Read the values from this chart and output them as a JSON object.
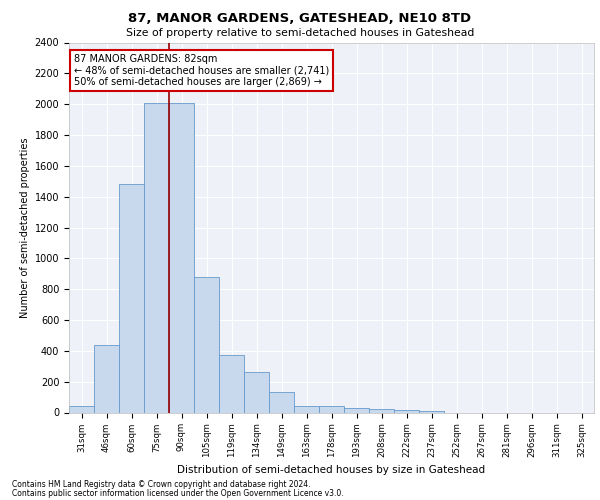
{
  "title1": "87, MANOR GARDENS, GATESHEAD, NE10 8TD",
  "title2": "Size of property relative to semi-detached houses in Gateshead",
  "xlabel": "Distribution of semi-detached houses by size in Gateshead",
  "ylabel": "Number of semi-detached properties",
  "bar_labels": [
    "31sqm",
    "46sqm",
    "60sqm",
    "75sqm",
    "90sqm",
    "105sqm",
    "119sqm",
    "134sqm",
    "149sqm",
    "163sqm",
    "178sqm",
    "193sqm",
    "208sqm",
    "222sqm",
    "237sqm",
    "252sqm",
    "267sqm",
    "281sqm",
    "296sqm",
    "311sqm",
    "325sqm"
  ],
  "bar_values": [
    45,
    440,
    1480,
    2010,
    2010,
    880,
    375,
    260,
    130,
    40,
    40,
    30,
    20,
    15,
    10,
    0,
    0,
    0,
    0,
    0,
    0
  ],
  "bar_color": "#c8d8ed",
  "bar_edge_color": "#6699cc",
  "vline_x": 3.5,
  "vline_color": "#990000",
  "annotation_text": "87 MANOR GARDENS: 82sqm\n← 48% of semi-detached houses are smaller (2,741)\n50% of semi-detached houses are larger (2,869) →",
  "annotation_box_color": "#ffffff",
  "annotation_box_edge_color": "#cc0000",
  "ylim": [
    0,
    2400
  ],
  "yticks": [
    0,
    200,
    400,
    600,
    800,
    1000,
    1200,
    1400,
    1600,
    1800,
    2000,
    2200,
    2400
  ],
  "bg_color": "#eef2f8",
  "footnote1": "Contains HM Land Registry data © Crown copyright and database right 2024.",
  "footnote2": "Contains public sector information licensed under the Open Government Licence v3.0."
}
